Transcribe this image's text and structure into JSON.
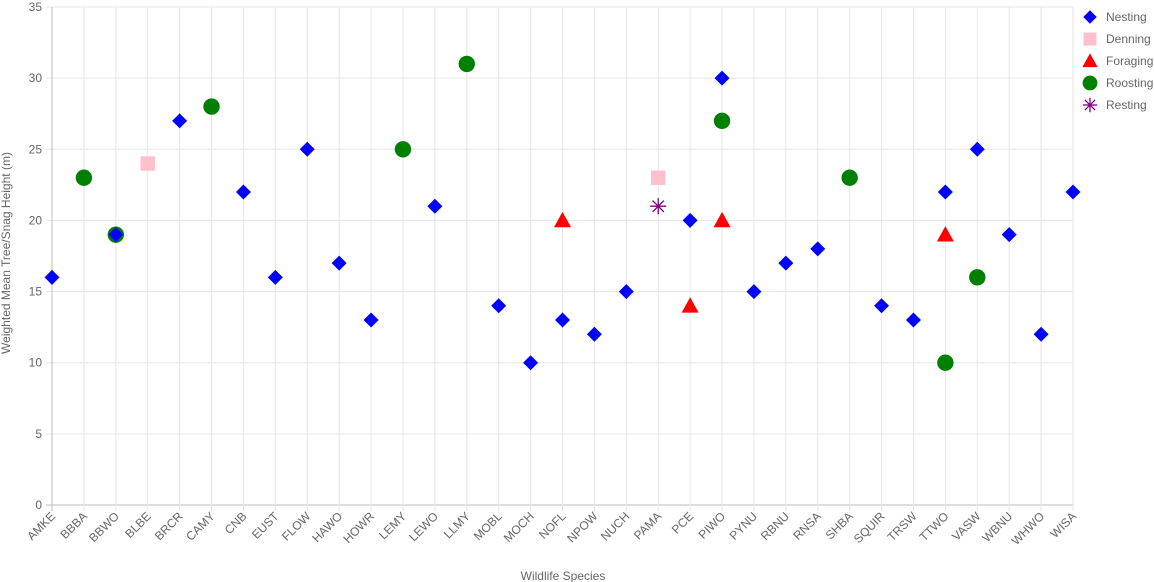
{
  "chart_data": {
    "type": "scatter",
    "xlabel": "Wildlife Species",
    "ylabel": "Weighted Mean Tree/Snag Height (m)",
    "ylim": [
      0,
      35
    ],
    "yticks": [
      0,
      5,
      10,
      15,
      20,
      25,
      30,
      35
    ],
    "grid": true,
    "legend_position": "right",
    "categories": [
      "AMKE",
      "BBBA",
      "BBWO",
      "BLBE",
      "BRCR",
      "CAMY",
      "CNB",
      "EUST",
      "FLOW",
      "HAWO",
      "HOWR",
      "LEMY",
      "LEWO",
      "LLMY",
      "MOBL",
      "MOCH",
      "NOFL",
      "NPOW",
      "NUCH",
      "PAMA",
      "PCE",
      "PIWO",
      "PYNU",
      "RBNU",
      "RNSA",
      "SHBA",
      "SQUIR",
      "TRSW",
      "TTWO",
      "VASW",
      "WBNU",
      "WHWO",
      "WISA"
    ],
    "series": [
      {
        "name": "Roosting",
        "marker": "circle",
        "color": "#008000",
        "points": [
          {
            "x": "BBBA",
            "y": 23
          },
          {
            "x": "BBWO",
            "y": 19
          },
          {
            "x": "CAMY",
            "y": 28
          },
          {
            "x": "LEMY",
            "y": 25
          },
          {
            "x": "LLMY",
            "y": 31
          },
          {
            "x": "PIWO",
            "y": 27
          },
          {
            "x": "SHBA",
            "y": 23
          },
          {
            "x": "TTWO",
            "y": 10
          },
          {
            "x": "VASW",
            "y": 16
          }
        ]
      },
      {
        "name": "Denning",
        "marker": "square",
        "color": "#ffc0cb",
        "points": [
          {
            "x": "BLBE",
            "y": 24
          },
          {
            "x": "PAMA",
            "y": 23
          }
        ]
      },
      {
        "name": "Foraging",
        "marker": "triangle",
        "color": "#ff0000",
        "points": [
          {
            "x": "NOFL",
            "y": 20
          },
          {
            "x": "PCE",
            "y": 14
          },
          {
            "x": "PIWO",
            "y": 20
          },
          {
            "x": "TTWO",
            "y": 19
          }
        ]
      },
      {
        "name": "Resting",
        "marker": "asterisk",
        "color": "#800080",
        "points": [
          {
            "x": "PAMA",
            "y": 21
          }
        ]
      },
      {
        "name": "Nesting",
        "marker": "diamond",
        "color": "#0000ff",
        "points": [
          {
            "x": "AMKE",
            "y": 16
          },
          {
            "x": "BBWO",
            "y": 19
          },
          {
            "x": "BRCR",
            "y": 27
          },
          {
            "x": "CNB",
            "y": 22
          },
          {
            "x": "EUST",
            "y": 16
          },
          {
            "x": "FLOW",
            "y": 25
          },
          {
            "x": "HAWO",
            "y": 17
          },
          {
            "x": "HOWR",
            "y": 13
          },
          {
            "x": "LEWO",
            "y": 21
          },
          {
            "x": "MOBL",
            "y": 14
          },
          {
            "x": "MOCH",
            "y": 10
          },
          {
            "x": "NOFL",
            "y": 13
          },
          {
            "x": "NPOW",
            "y": 12
          },
          {
            "x": "NUCH",
            "y": 15
          },
          {
            "x": "PCE",
            "y": 20
          },
          {
            "x": "PIWO",
            "y": 30
          },
          {
            "x": "PYNU",
            "y": 15
          },
          {
            "x": "RBNU",
            "y": 17
          },
          {
            "x": "RNSA",
            "y": 18
          },
          {
            "x": "SQUIR",
            "y": 14
          },
          {
            "x": "TRSW",
            "y": 13
          },
          {
            "x": "TTWO",
            "y": 22
          },
          {
            "x": "VASW",
            "y": 25
          },
          {
            "x": "WBNU",
            "y": 19
          },
          {
            "x": "WHWO",
            "y": 12
          },
          {
            "x": "WISA",
            "y": 22
          }
        ]
      }
    ],
    "legend": [
      {
        "name": "Nesting",
        "marker": "diamond",
        "color": "#0000ff"
      },
      {
        "name": "Denning",
        "marker": "square",
        "color": "#ffc0cb"
      },
      {
        "name": "Foraging",
        "marker": "triangle",
        "color": "#ff0000"
      },
      {
        "name": "Roosting",
        "marker": "circle",
        "color": "#008000"
      },
      {
        "name": "Resting",
        "marker": "asterisk",
        "color": "#800080"
      }
    ]
  }
}
